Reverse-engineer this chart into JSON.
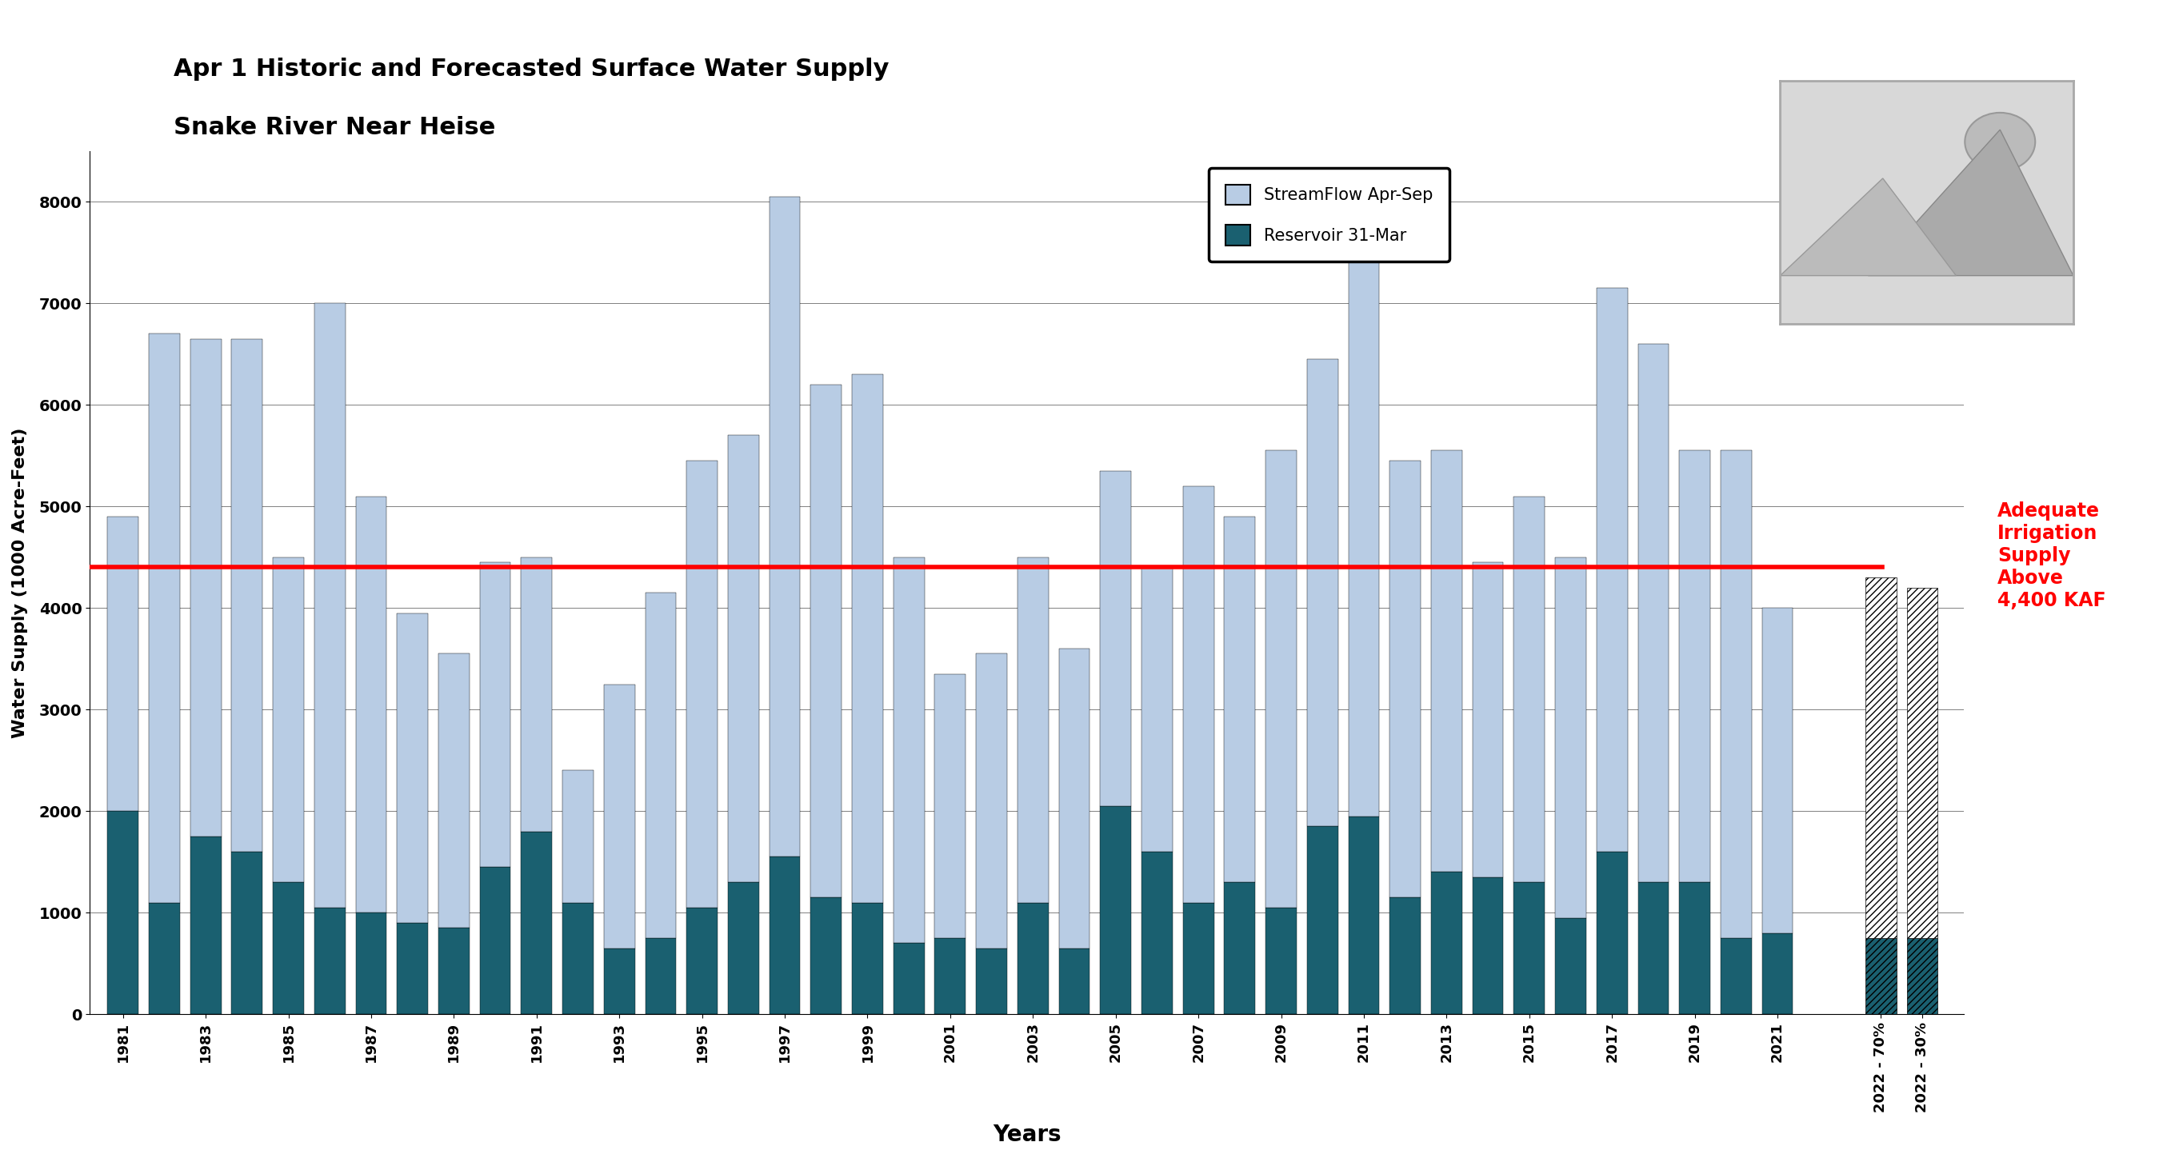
{
  "title_line1": "Apr 1 Historic and Forecasted Surface Water Supply",
  "title_line2": "Snake River Near Heise",
  "ylabel": "Water Supply (1000 Acre-Feet)",
  "xlabel": "Years",
  "adequate_level": 4400,
  "adequate_label": "Adequate\nIrrigation\nSupply\nAbove\n4,400 KAF",
  "ylim": [
    0,
    8500
  ],
  "yticks": [
    0,
    1000,
    2000,
    3000,
    4000,
    5000,
    6000,
    7000,
    8000
  ],
  "legend_streamflow": "StreamFlow Apr-Sep",
  "legend_reservoir": "Reservoir 31-Mar",
  "color_streamflow": "#b8cce4",
  "color_reservoir": "#1a6070",
  "color_adequate_line": "red",
  "years": [
    1981,
    1982,
    1983,
    1984,
    1985,
    1986,
    1987,
    1988,
    1989,
    1990,
    1991,
    1992,
    1993,
    1994,
    1995,
    1996,
    1997,
    1998,
    1999,
    2000,
    2001,
    2002,
    2003,
    2004,
    2005,
    2006,
    2007,
    2008,
    2009,
    2010,
    2011,
    2012,
    2013,
    2014,
    2015,
    2016,
    2017,
    2018,
    2019,
    2020,
    2021
  ],
  "reservoir": [
    2000,
    1100,
    1750,
    1600,
    1300,
    1050,
    1000,
    900,
    850,
    1450,
    1800,
    1100,
    650,
    750,
    1050,
    1300,
    1550,
    1150,
    1100,
    700,
    750,
    650,
    1100,
    650,
    2050,
    1600,
    1100,
    1300,
    1050,
    1850,
    1950,
    1150,
    1400,
    1350,
    1300,
    950,
    1600,
    1300,
    1300,
    750,
    800
  ],
  "streamflow": [
    2900,
    5600,
    4900,
    5050,
    3200,
    5950,
    4100,
    3050,
    2700,
    3000,
    2700,
    1300,
    2600,
    3400,
    4400,
    4400,
    6500,
    5050,
    5200,
    3800,
    2600,
    2900,
    3400,
    2950,
    3300,
    2800,
    4100,
    3600,
    4500,
    4600,
    5900,
    4300,
    4150,
    3100,
    3800,
    3550,
    5550,
    5300,
    4250,
    4800,
    3200
  ],
  "forecast_labels": [
    "2022 - 70%",
    "2022 - 30%"
  ],
  "forecast_reservoir": [
    750,
    750
  ],
  "forecast_streamflow": [
    3550,
    3450
  ],
  "tick_years": [
    1981,
    1983,
    1985,
    1987,
    1989,
    1991,
    1993,
    1995,
    1997,
    1999,
    2001,
    2003,
    2005,
    2007,
    2009,
    2011,
    2013,
    2015,
    2017,
    2019,
    2021
  ]
}
